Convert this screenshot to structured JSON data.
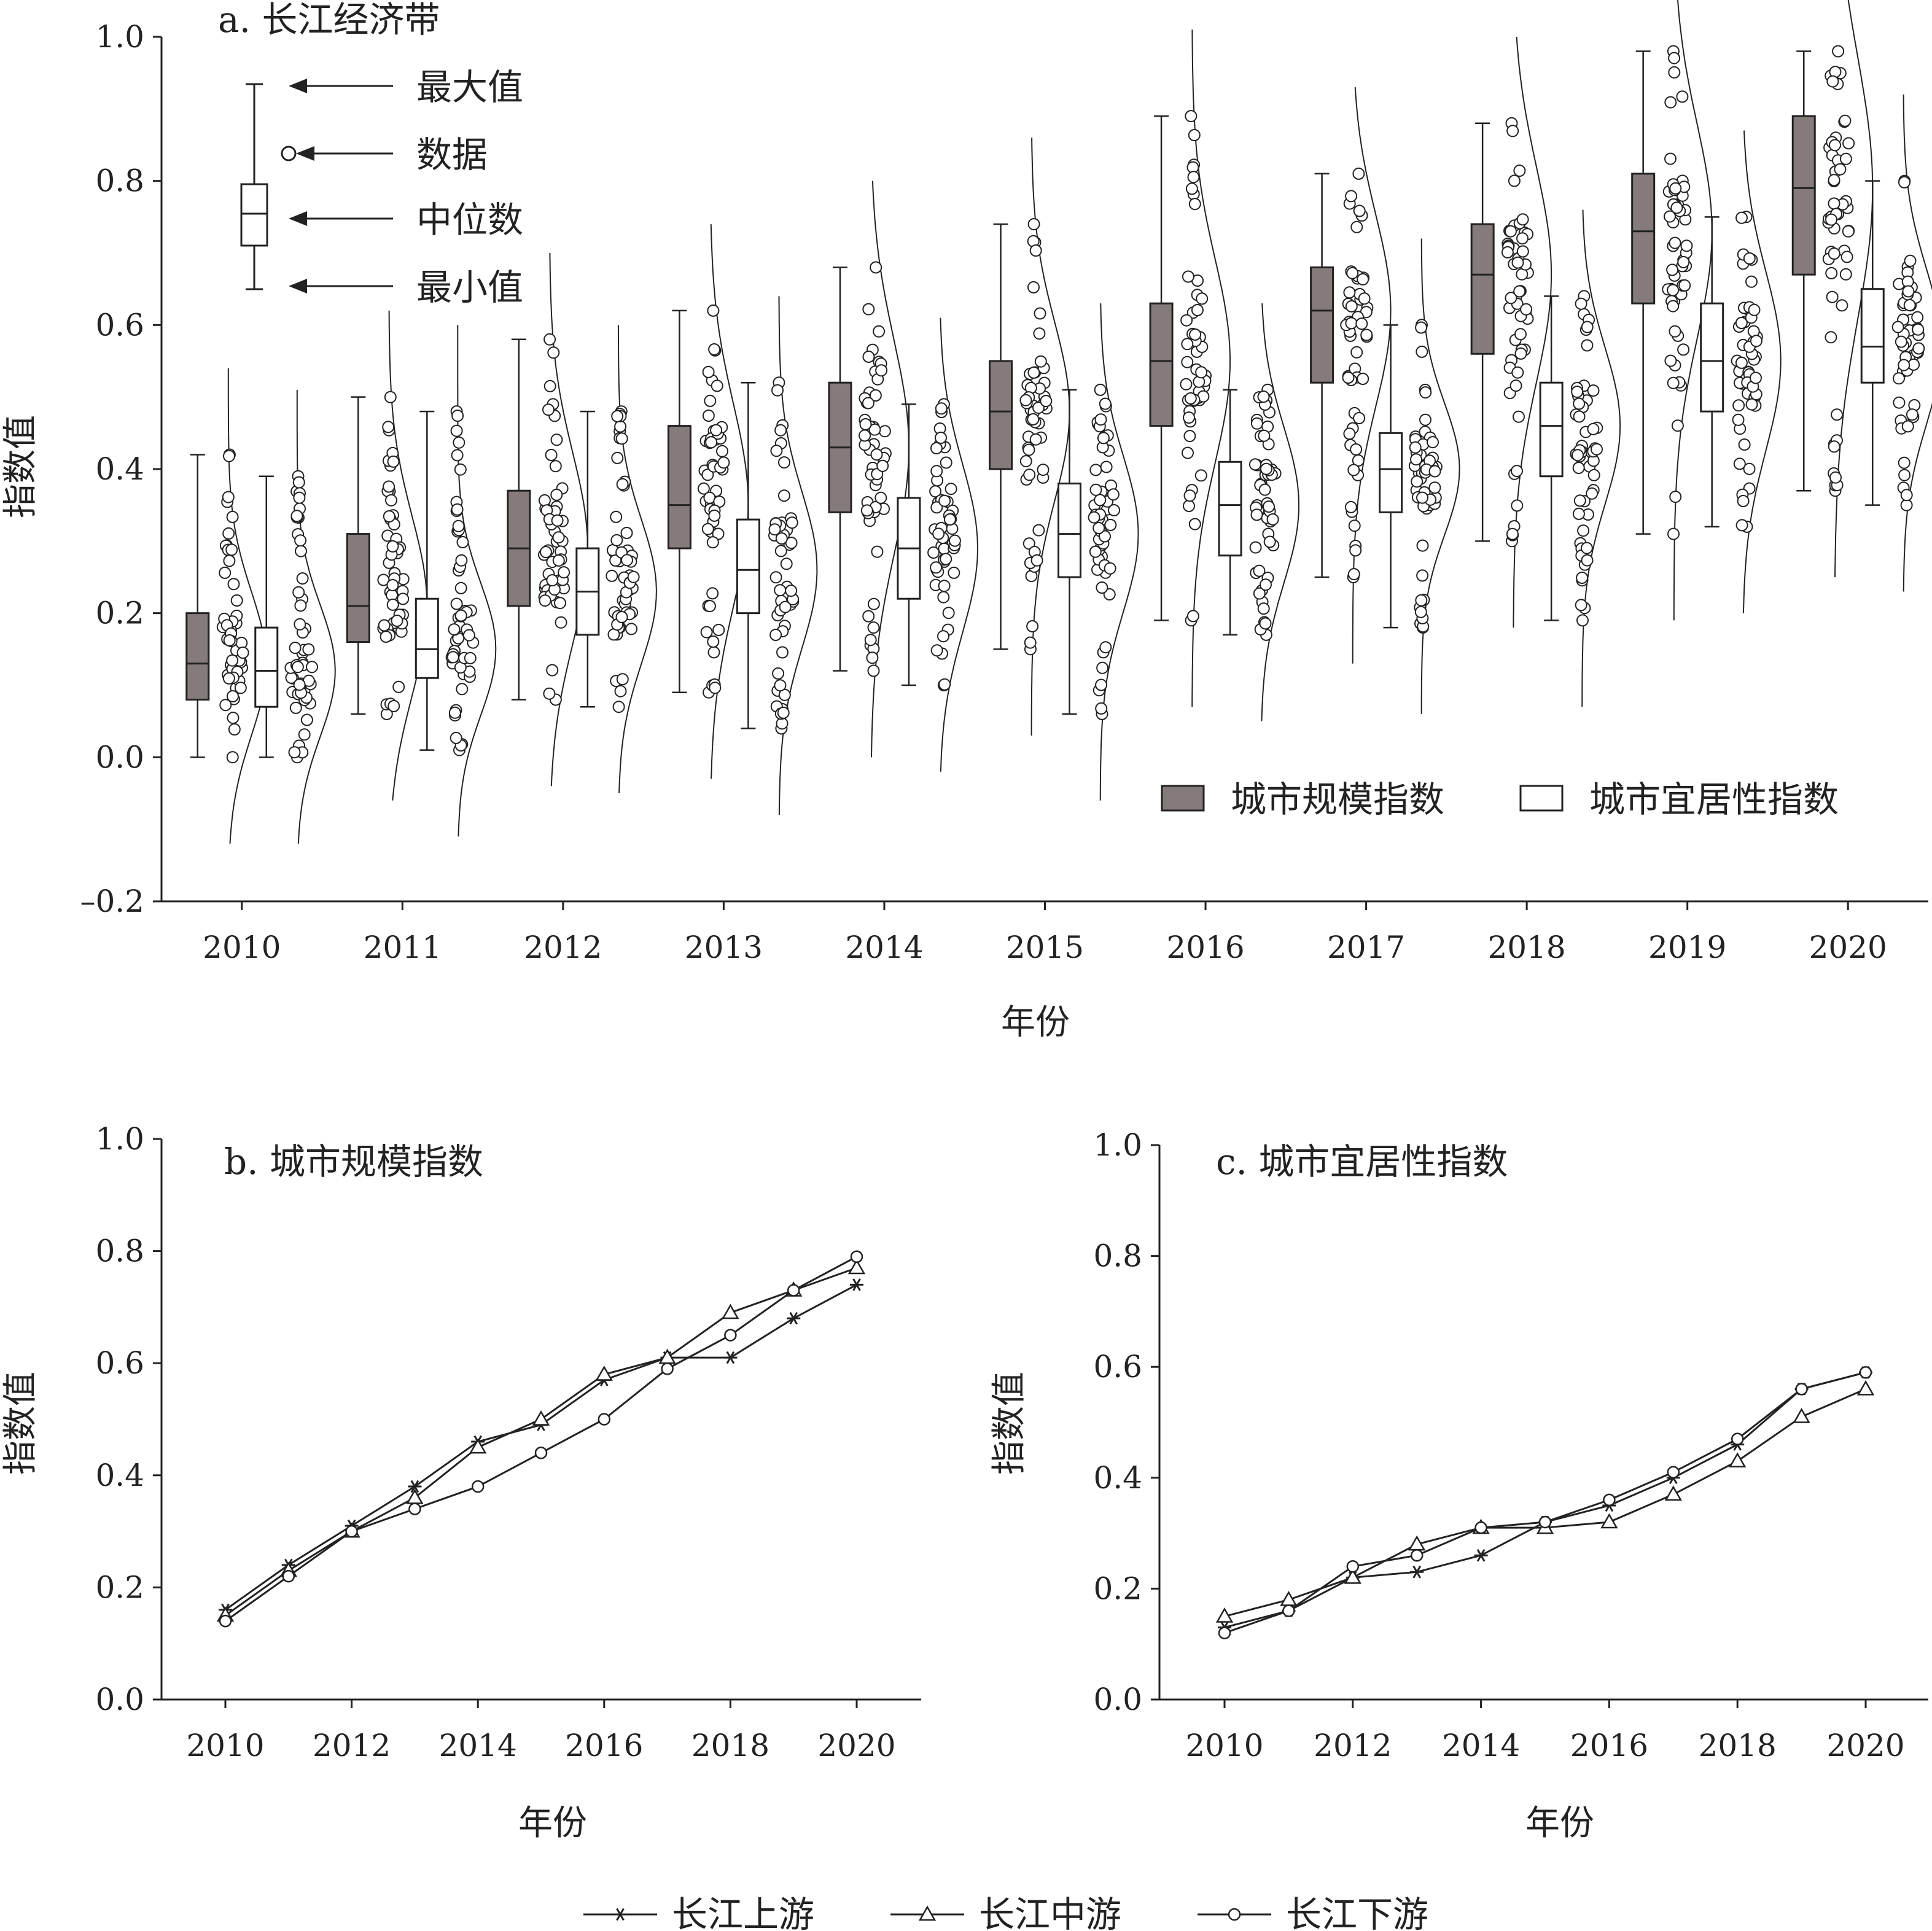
{
  "chart_data": [
    {
      "id": "a",
      "type": "boxplot",
      "title": "a. 长江经济带",
      "xlabel": "年份",
      "ylabel": "指数值",
      "ylim": [
        -0.2,
        1.0
      ],
      "yticks": [
        "1.0",
        "0.8",
        "0.6",
        "0.4",
        "0.2",
        "0.0",
        "–0.2"
      ],
      "ytick_values": [
        1.0,
        0.8,
        0.6,
        0.4,
        0.2,
        0.0,
        -0.2
      ],
      "categories": [
        "2010",
        "2011",
        "2012",
        "2013",
        "2014",
        "2015",
        "2016",
        "2017",
        "2018",
        "2019",
        "2020"
      ],
      "series": [
        {
          "name": "城市规模指数",
          "color": "#857b7b",
          "min": [
            0.0,
            0.06,
            0.08,
            0.09,
            0.12,
            0.15,
            0.19,
            0.25,
            0.3,
            0.31,
            0.37
          ],
          "q1": [
            0.08,
            0.16,
            0.21,
            0.29,
            0.34,
            0.4,
            0.46,
            0.52,
            0.56,
            0.63,
            0.67
          ],
          "median": [
            0.13,
            0.21,
            0.29,
            0.35,
            0.43,
            0.48,
            0.55,
            0.62,
            0.67,
            0.73,
            0.79
          ],
          "q3": [
            0.2,
            0.31,
            0.37,
            0.46,
            0.52,
            0.55,
            0.63,
            0.68,
            0.74,
            0.81,
            0.89
          ],
          "max": [
            0.42,
            0.5,
            0.58,
            0.62,
            0.68,
            0.74,
            0.89,
            0.81,
            0.88,
            0.98,
            0.98
          ]
        },
        {
          "name": "城市宜居性指数",
          "color": "#ffffff",
          "min": [
            0.0,
            0.01,
            0.07,
            0.04,
            0.1,
            0.06,
            0.17,
            0.18,
            0.19,
            0.32,
            0.35
          ],
          "q1": [
            0.07,
            0.11,
            0.17,
            0.2,
            0.22,
            0.25,
            0.28,
            0.34,
            0.39,
            0.48,
            0.52
          ],
          "median": [
            0.12,
            0.15,
            0.23,
            0.26,
            0.29,
            0.31,
            0.35,
            0.4,
            0.46,
            0.55,
            0.57
          ],
          "q3": [
            0.18,
            0.22,
            0.29,
            0.33,
            0.36,
            0.38,
            0.41,
            0.45,
            0.52,
            0.63,
            0.65
          ],
          "max": [
            0.39,
            0.48,
            0.48,
            0.52,
            0.49,
            0.51,
            0.51,
            0.6,
            0.64,
            0.75,
            0.8
          ]
        }
      ],
      "key": {
        "max_label": "最大值",
        "data_label": "数据",
        "median_label": "中位数",
        "min_label": "最小值"
      },
      "legend_position": "bottom-right"
    },
    {
      "id": "b",
      "type": "line",
      "title": "b. 城市规模指数",
      "xlabel": "年份",
      "ylabel": "指数值",
      "ylim": [
        0.0,
        1.0
      ],
      "yticks": [
        "1.0",
        "0.8",
        "0.6",
        "0.4",
        "0.2",
        "0.0"
      ],
      "ytick_values": [
        1.0,
        0.8,
        0.6,
        0.4,
        0.2,
        0.0
      ],
      "xticks": [
        "2010",
        "2012",
        "2014",
        "2016",
        "2018",
        "2020"
      ],
      "xtick_values": [
        2010,
        2012,
        2014,
        2016,
        2018,
        2020
      ],
      "x": [
        2010,
        2011,
        2012,
        2013,
        2014,
        2015,
        2016,
        2017,
        2018,
        2019,
        2020
      ],
      "series": [
        {
          "name": "长江上游",
          "marker": "star",
          "values": [
            0.16,
            0.24,
            0.31,
            0.38,
            0.46,
            0.49,
            0.57,
            0.61,
            0.61,
            0.68,
            0.74
          ]
        },
        {
          "name": "长江中游",
          "marker": "triangle",
          "values": [
            0.15,
            0.23,
            0.3,
            0.36,
            0.45,
            0.5,
            0.58,
            0.61,
            0.69,
            0.73,
            0.77
          ]
        },
        {
          "name": "长江下游",
          "marker": "circle",
          "values": [
            0.14,
            0.22,
            0.3,
            0.34,
            0.38,
            0.44,
            0.5,
            0.59,
            0.65,
            0.73,
            0.79
          ]
        }
      ]
    },
    {
      "id": "c",
      "type": "line",
      "title": "c. 城市宜居性指数",
      "xlabel": "年份",
      "ylabel": "指数值",
      "ylim": [
        0.0,
        1.0
      ],
      "yticks": [
        "1.0",
        "0.8",
        "0.6",
        "0.4",
        "0.2",
        "0.0"
      ],
      "ytick_values": [
        1.0,
        0.8,
        0.6,
        0.4,
        0.2,
        0.0
      ],
      "xticks": [
        "2010",
        "2012",
        "2014",
        "2016",
        "2018",
        "2020"
      ],
      "xtick_values": [
        2010,
        2012,
        2014,
        2016,
        2018,
        2020
      ],
      "x": [
        2010,
        2011,
        2012,
        2013,
        2014,
        2015,
        2016,
        2017,
        2018,
        2019,
        2020
      ],
      "series": [
        {
          "name": "长江上游",
          "marker": "star",
          "values": [
            0.13,
            0.16,
            0.22,
            0.23,
            0.26,
            0.32,
            0.35,
            0.4,
            0.46,
            0.56,
            0.59
          ]
        },
        {
          "name": "长江中游",
          "marker": "triangle",
          "values": [
            0.15,
            0.18,
            0.22,
            0.28,
            0.31,
            0.31,
            0.32,
            0.37,
            0.43,
            0.51,
            0.56
          ]
        },
        {
          "name": "长江下游",
          "marker": "circle",
          "values": [
            0.12,
            0.16,
            0.24,
            0.26,
            0.31,
            0.32,
            0.36,
            0.41,
            0.47,
            0.56,
            0.59
          ]
        }
      ]
    }
  ]
}
